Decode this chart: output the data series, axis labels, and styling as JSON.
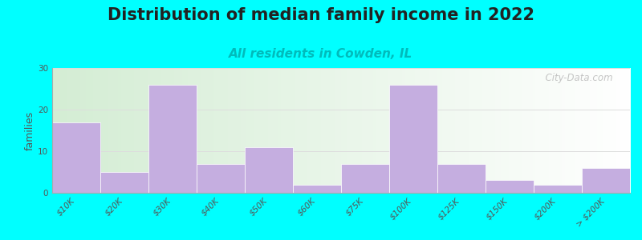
{
  "title": "Distribution of median family income in 2022",
  "subtitle": "All residents in Cowden, IL",
  "subtitle_color": "#00bbbb",
  "ylabel": "families",
  "background_color": "#00ffff",
  "bar_color": "#c5aee0",
  "categories": [
    "$10K",
    "$20K",
    "$30K",
    "$40K",
    "$50K",
    "$60K",
    "$75K",
    "$100K",
    "$125K",
    "$150K",
    "$200K",
    "> $200K"
  ],
  "values": [
    17,
    5,
    26,
    7,
    11,
    2,
    7,
    26,
    7,
    3,
    2,
    6
  ],
  "ylim": [
    0,
    30
  ],
  "yticks": [
    0,
    10,
    20,
    30
  ],
  "watermark": "  City-Data.com",
  "title_fontsize": 15,
  "subtitle_fontsize": 11,
  "ylabel_fontsize": 9,
  "tick_fontsize": 7.5
}
